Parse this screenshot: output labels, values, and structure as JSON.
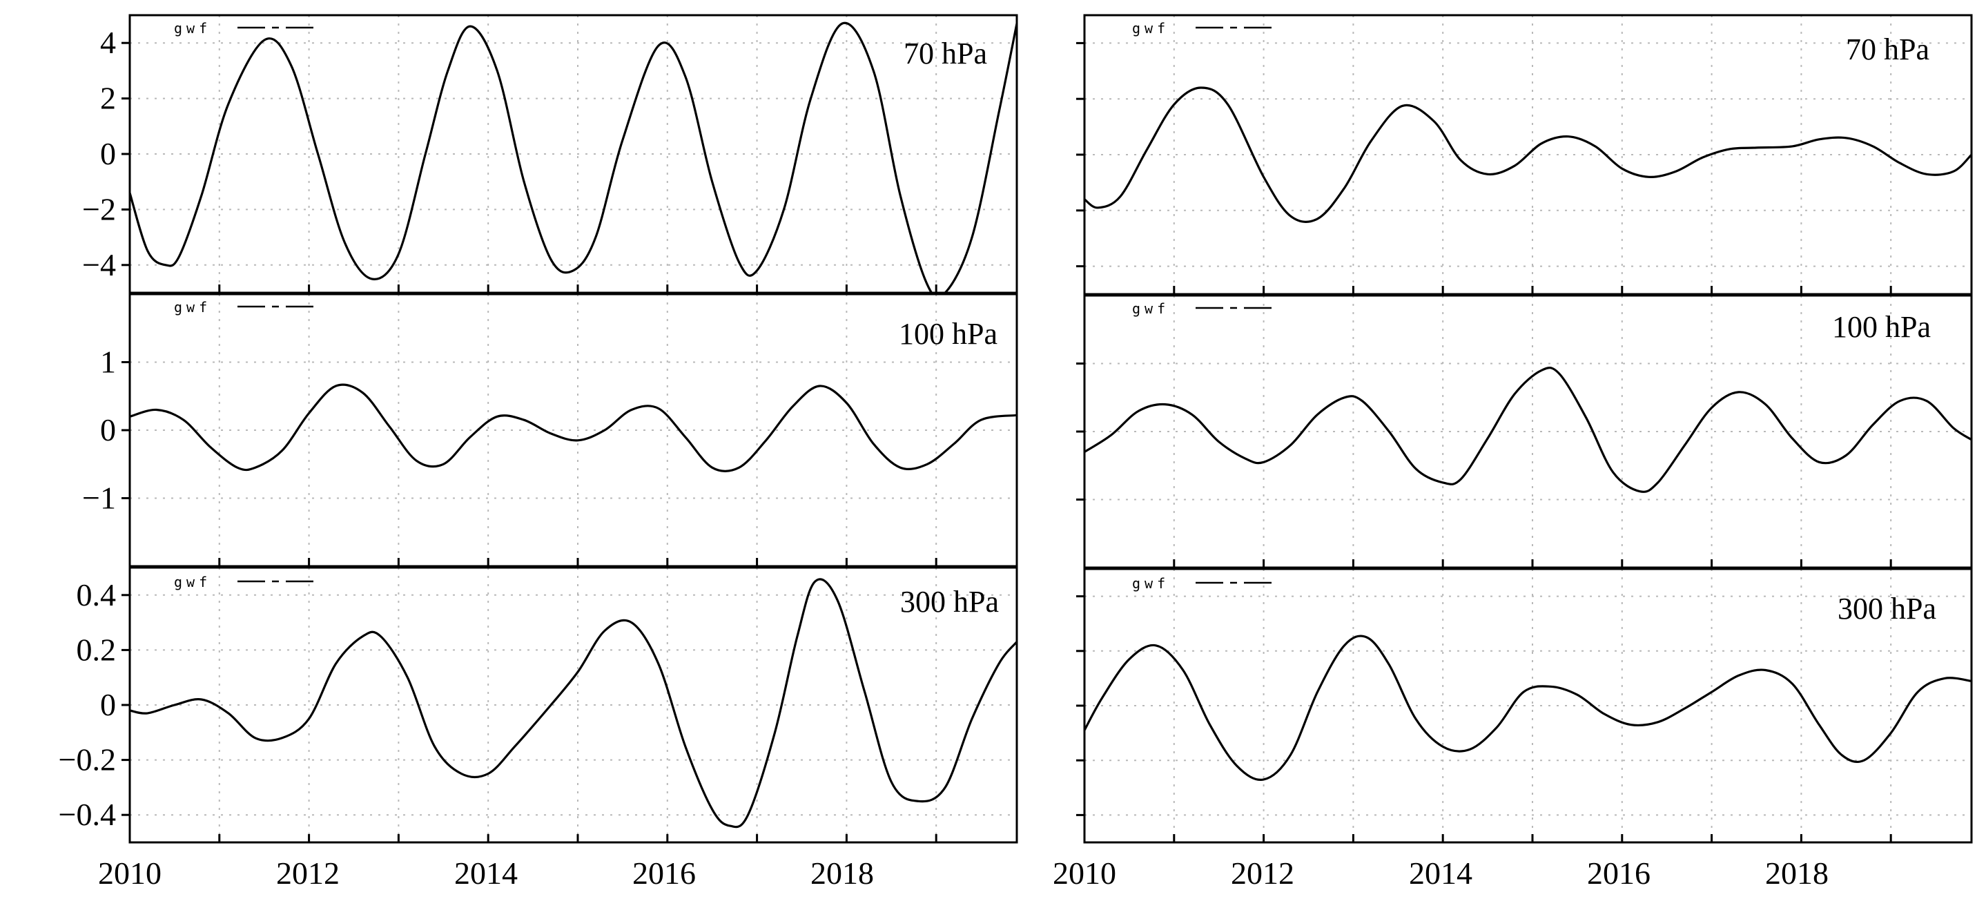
{
  "figure": {
    "x_tick_labels": [
      "2010",
      "2012",
      "2014",
      "2016",
      "2018"
    ]
  },
  "chart_data": [
    {
      "type": "line",
      "position": "left-top",
      "label": "70 hPa",
      "legend": "gwf",
      "xlim": [
        2010,
        2019.9
      ],
      "ylim": [
        -5,
        5
      ],
      "yticks": [
        -4,
        -2,
        0,
        2,
        4
      ],
      "ytick_labels": [
        "−4",
        "−2",
        "0",
        "2",
        "4"
      ],
      "series": [
        {
          "name": "gwf",
          "x": [
            2010.0,
            2010.2,
            2010.4,
            2010.55,
            2010.8,
            2011.1,
            2011.5,
            2011.8,
            2012.1,
            2012.4,
            2012.7,
            2013.0,
            2013.3,
            2013.55,
            2013.8,
            2014.1,
            2014.4,
            2014.7,
            2014.95,
            2015.2,
            2015.5,
            2015.9,
            2016.2,
            2016.5,
            2016.8,
            2017.0,
            2017.3,
            2017.6,
            2017.95,
            2018.3,
            2018.6,
            2018.9,
            2019.1,
            2019.4,
            2019.7,
            2019.9
          ],
          "y": [
            -1.4,
            -3.5,
            -4.0,
            -3.7,
            -1.5,
            1.8,
            4.1,
            3.2,
            0.0,
            -3.2,
            -4.5,
            -3.6,
            0.0,
            3.0,
            4.6,
            3.0,
            -1.0,
            -3.8,
            -4.2,
            -3.0,
            0.5,
            3.9,
            2.8,
            -1.0,
            -3.9,
            -4.2,
            -2.0,
            2.0,
            4.7,
            3.0,
            -1.5,
            -4.7,
            -5.0,
            -3.0,
            1.5,
            4.7
          ]
        }
      ]
    },
    {
      "type": "line",
      "position": "right-top",
      "label": "70 hPa",
      "legend": "gwf",
      "xlim": [
        2010,
        2019.9
      ],
      "ylim": [
        -5,
        5
      ],
      "yticks": [
        -4,
        -2,
        0,
        2,
        4
      ],
      "ytick_labels": [],
      "series": [
        {
          "name": "gwf",
          "x": [
            2010.0,
            2010.15,
            2010.4,
            2010.7,
            2011.0,
            2011.3,
            2011.6,
            2012.0,
            2012.3,
            2012.6,
            2012.9,
            2013.2,
            2013.55,
            2013.9,
            2014.2,
            2014.5,
            2014.8,
            2015.1,
            2015.4,
            2015.7,
            2016.0,
            2016.3,
            2016.6,
            2016.9,
            2017.2,
            2017.5,
            2017.9,
            2018.2,
            2018.5,
            2018.8,
            2019.1,
            2019.4,
            2019.7,
            2019.9
          ],
          "y": [
            -1.6,
            -1.9,
            -1.5,
            0.2,
            1.8,
            2.4,
            1.8,
            -0.8,
            -2.2,
            -2.3,
            -1.2,
            0.5,
            1.75,
            1.2,
            -0.2,
            -0.7,
            -0.4,
            0.4,
            0.65,
            0.3,
            -0.5,
            -0.8,
            -0.6,
            -0.1,
            0.2,
            0.25,
            0.3,
            0.55,
            0.6,
            0.3,
            -0.3,
            -0.7,
            -0.6,
            0.0
          ]
        }
      ]
    },
    {
      "type": "line",
      "position": "left-middle",
      "label": "100 hPa",
      "legend": "gwf",
      "xlim": [
        2010,
        2019.9
      ],
      "ylim": [
        -2,
        2
      ],
      "yticks": [
        -1,
        0,
        1
      ],
      "ytick_labels": [
        "−1",
        "0",
        "1"
      ],
      "series": [
        {
          "name": "gwf",
          "x": [
            2010.0,
            2010.3,
            2010.6,
            2010.9,
            2011.2,
            2011.4,
            2011.7,
            2012.0,
            2012.3,
            2012.6,
            2012.9,
            2013.2,
            2013.5,
            2013.8,
            2014.1,
            2014.4,
            2014.7,
            2015.0,
            2015.3,
            2015.6,
            2015.9,
            2016.2,
            2016.5,
            2016.8,
            2017.1,
            2017.4,
            2017.7,
            2018.0,
            2018.3,
            2018.6,
            2018.9,
            2019.2,
            2019.5,
            2019.9
          ],
          "y": [
            0.2,
            0.3,
            0.15,
            -0.25,
            -0.55,
            -0.55,
            -0.3,
            0.25,
            0.65,
            0.55,
            0.05,
            -0.45,
            -0.5,
            -0.1,
            0.2,
            0.15,
            -0.05,
            -0.15,
            0.0,
            0.3,
            0.32,
            -0.1,
            -0.55,
            -0.55,
            -0.15,
            0.35,
            0.65,
            0.4,
            -0.2,
            -0.55,
            -0.5,
            -0.2,
            0.15,
            0.22
          ]
        }
      ]
    },
    {
      "type": "line",
      "position": "right-middle",
      "label": "100 hPa",
      "legend": "gwf",
      "xlim": [
        2010,
        2019.9
      ],
      "ylim": [
        -2,
        2
      ],
      "yticks": [
        -1,
        0,
        1
      ],
      "ytick_labels": [],
      "series": [
        {
          "name": "gwf",
          "x": [
            2010.0,
            2010.3,
            2010.6,
            2010.9,
            2011.2,
            2011.5,
            2011.8,
            2012.0,
            2012.3,
            2012.6,
            2012.9,
            2013.1,
            2013.4,
            2013.7,
            2014.0,
            2014.2,
            2014.5,
            2014.8,
            2015.1,
            2015.3,
            2015.6,
            2015.9,
            2016.2,
            2016.4,
            2016.7,
            2017.0,
            2017.3,
            2017.6,
            2017.9,
            2018.2,
            2018.5,
            2018.8,
            2019.1,
            2019.4,
            2019.7,
            2019.9
          ],
          "y": [
            -0.3,
            -0.05,
            0.3,
            0.4,
            0.25,
            -0.15,
            -0.4,
            -0.45,
            -0.2,
            0.25,
            0.5,
            0.45,
            0.0,
            -0.55,
            -0.75,
            -0.7,
            -0.1,
            0.55,
            0.9,
            0.85,
            0.2,
            -0.6,
            -0.88,
            -0.75,
            -0.2,
            0.35,
            0.58,
            0.4,
            -0.1,
            -0.45,
            -0.35,
            0.1,
            0.45,
            0.45,
            0.05,
            -0.12
          ]
        }
      ]
    },
    {
      "type": "line",
      "position": "left-bottom",
      "label": "300 hPa",
      "legend": "gwf",
      "xlim": [
        2010,
        2019.9
      ],
      "ylim": [
        -0.5,
        0.5
      ],
      "yticks": [
        -0.4,
        -0.2,
        0,
        0.2,
        0.4
      ],
      "ytick_labels": [
        "−0.4",
        "−0.2",
        "0",
        "0.2",
        "0.4"
      ],
      "series": [
        {
          "name": "gwf",
          "x": [
            2010.0,
            2010.2,
            2010.5,
            2010.8,
            2011.1,
            2011.4,
            2011.7,
            2012.0,
            2012.3,
            2012.6,
            2012.8,
            2013.1,
            2013.4,
            2013.7,
            2014.0,
            2014.3,
            2014.7,
            2015.0,
            2015.3,
            2015.6,
            2015.9,
            2016.2,
            2016.5,
            2016.7,
            2016.9,
            2017.2,
            2017.45,
            2017.65,
            2017.9,
            2018.2,
            2018.5,
            2018.8,
            2019.1,
            2019.4,
            2019.7,
            2019.9
          ],
          "y": [
            -0.02,
            -0.03,
            0.0,
            0.02,
            -0.03,
            -0.12,
            -0.12,
            -0.05,
            0.15,
            0.25,
            0.25,
            0.1,
            -0.15,
            -0.25,
            -0.25,
            -0.15,
            0.0,
            0.12,
            0.27,
            0.3,
            0.15,
            -0.15,
            -0.38,
            -0.44,
            -0.4,
            -0.1,
            0.25,
            0.45,
            0.38,
            0.05,
            -0.28,
            -0.35,
            -0.3,
            -0.05,
            0.15,
            0.23
          ]
        }
      ]
    },
    {
      "type": "line",
      "position": "right-bottom",
      "label": "300 hPa",
      "legend": "gwf",
      "xlim": [
        2010,
        2019.9
      ],
      "ylim": [
        -0.5,
        0.5
      ],
      "yticks": [
        -0.4,
        -0.2,
        0,
        0.2,
        0.4
      ],
      "ytick_labels": [],
      "series": [
        {
          "name": "gwf",
          "x": [
            2010.0,
            2010.2,
            2010.5,
            2010.8,
            2011.1,
            2011.4,
            2011.7,
            2012.0,
            2012.3,
            2012.6,
            2012.9,
            2013.15,
            2013.4,
            2013.7,
            2014.0,
            2014.3,
            2014.6,
            2014.9,
            2015.2,
            2015.5,
            2015.8,
            2016.1,
            2016.4,
            2016.7,
            2017.0,
            2017.3,
            2017.6,
            2017.9,
            2018.2,
            2018.45,
            2018.7,
            2019.0,
            2019.3,
            2019.6,
            2019.9
          ],
          "y": [
            -0.09,
            0.03,
            0.17,
            0.22,
            0.13,
            -0.07,
            -0.22,
            -0.27,
            -0.18,
            0.05,
            0.22,
            0.25,
            0.15,
            -0.05,
            -0.15,
            -0.16,
            -0.08,
            0.05,
            0.07,
            0.04,
            -0.03,
            -0.07,
            -0.06,
            -0.01,
            0.05,
            0.11,
            0.13,
            0.08,
            -0.07,
            -0.18,
            -0.2,
            -0.1,
            0.05,
            0.1,
            0.09
          ]
        }
      ]
    }
  ]
}
